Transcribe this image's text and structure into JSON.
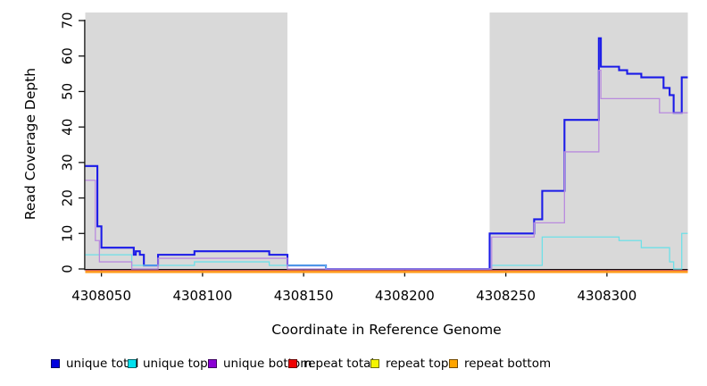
{
  "chart_data": {
    "type": "line",
    "subtype": "step-coverage",
    "title": "",
    "xlabel": "Coordinate in Reference Genome",
    "ylabel": "Read Coverage Depth",
    "xlim": [
      4308042,
      4308340
    ],
    "ylim": [
      0,
      70
    ],
    "x_ticks": [
      4308050,
      4308100,
      4308150,
      4308200,
      4308250,
      4308300
    ],
    "y_ticks": [
      0,
      10,
      20,
      30,
      40,
      50,
      60,
      70
    ],
    "grid": false,
    "legend_position": "bottom",
    "shaded_region_color": "#d9d9d9",
    "background_regions": [
      {
        "name": "left-shaded-region",
        "x_start": 4308042,
        "x_end": 4308142
      },
      {
        "name": "right-shaded-region",
        "x_start": 4308242,
        "x_end": 4308340
      }
    ],
    "series": [
      {
        "name": "unique total",
        "color": "#1b1be8",
        "legend_color": "#0000dd",
        "width": 2.1,
        "steps": [
          [
            4308042,
            29
          ],
          [
            4308048,
            12
          ],
          [
            4308050,
            6
          ],
          [
            4308066,
            4
          ],
          [
            4308067,
            5
          ],
          [
            4308069,
            4
          ],
          [
            4308071,
            1
          ],
          [
            4308078,
            4
          ],
          [
            4308096,
            5
          ],
          [
            4308133,
            4
          ],
          [
            4308142,
            1
          ],
          [
            4308161,
            0
          ],
          [
            4308242,
            10
          ],
          [
            4308264,
            14
          ],
          [
            4308268,
            22
          ],
          [
            4308279,
            42
          ],
          [
            4308296,
            65
          ],
          [
            4308297,
            57
          ],
          [
            4308306,
            56
          ],
          [
            4308310,
            55
          ],
          [
            4308317,
            54
          ],
          [
            4308328,
            51
          ],
          [
            4308331,
            49
          ],
          [
            4308333,
            44
          ],
          [
            4308337,
            54
          ],
          [
            4308340,
            54
          ]
        ]
      },
      {
        "name": "unique top",
        "color": "#6ee0e8",
        "legend_color": "#00e0ee",
        "width": 1.3,
        "steps": [
          [
            4308042,
            4
          ],
          [
            4308065,
            1
          ],
          [
            4308096,
            2
          ],
          [
            4308133,
            1
          ],
          [
            4308161,
            0
          ],
          [
            4308243,
            1
          ],
          [
            4308268,
            9
          ],
          [
            4308306,
            8
          ],
          [
            4308317,
            6
          ],
          [
            4308331,
            2
          ],
          [
            4308333,
            0
          ],
          [
            4308337,
            10
          ],
          [
            4308340,
            10
          ]
        ]
      },
      {
        "name": "unique bottom",
        "color": "#b98ade",
        "legend_color": "#8a00d4",
        "width": 1.3,
        "steps": [
          [
            4308042,
            25
          ],
          [
            4308047,
            8
          ],
          [
            4308049,
            2
          ],
          [
            4308065,
            0
          ],
          [
            4308078,
            3
          ],
          [
            4308142,
            0
          ],
          [
            4308243,
            9
          ],
          [
            4308264,
            13
          ],
          [
            4308279,
            33
          ],
          [
            4308296,
            56
          ],
          [
            4308297,
            48
          ],
          [
            4308326,
            44
          ],
          [
            4308340,
            44
          ]
        ]
      },
      {
        "name": "repeat total",
        "color": "#e04545",
        "legend_color": "#ee0000",
        "width": 1.4,
        "steps": [
          [
            4308042,
            0
          ],
          [
            4308340,
            0
          ]
        ]
      },
      {
        "name": "repeat top",
        "color": "#f0f000",
        "legend_color": "#f5f500",
        "width": 1.4,
        "steps": [
          [
            4308042,
            0
          ],
          [
            4308340,
            0
          ]
        ]
      },
      {
        "name": "repeat bottom",
        "color": "#ff9e1f",
        "legend_color": "#ffa500",
        "width": 2.5,
        "steps": [
          [
            4308042,
            0
          ],
          [
            4308340,
            0
          ]
        ]
      }
    ]
  }
}
